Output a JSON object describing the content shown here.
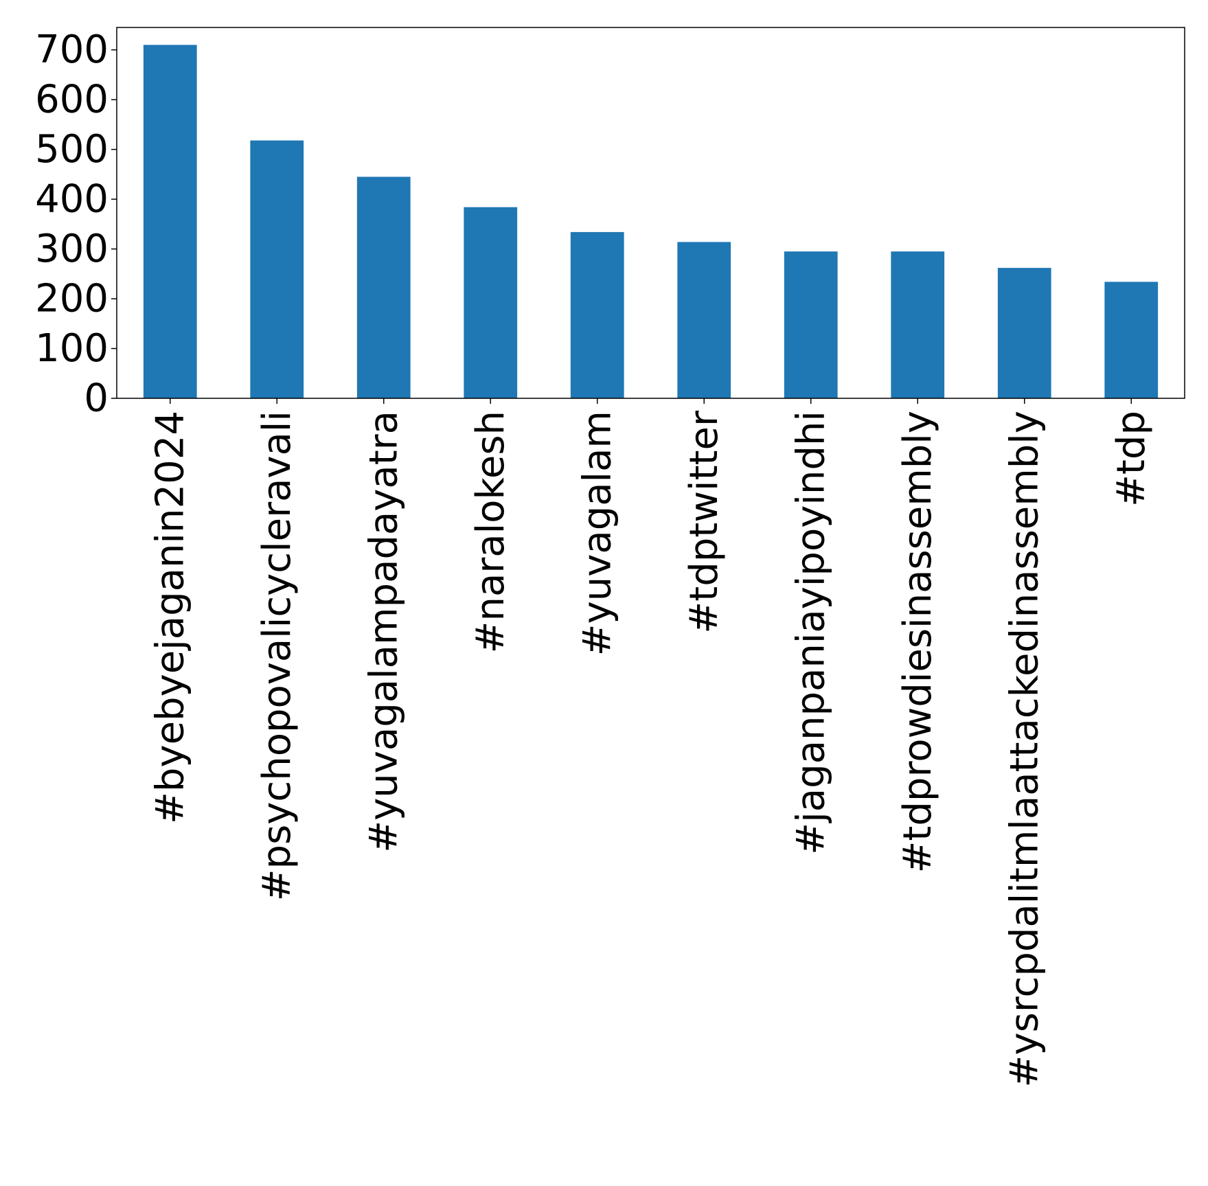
{
  "chart_data": {
    "type": "bar",
    "title": "",
    "xlabel": "",
    "ylabel": "",
    "categories": [
      "#byebyejaganin2024",
      "#psychopovalicycleravali",
      "#yuvagalampadayatra",
      "#naralokesh",
      "#yuvagalam",
      "#tdptwitter",
      "#jaganpaniayipoyindhi",
      "#tdprowdiesinassembly",
      "#ysrcpdalitmlaattackedinassembly",
      "#tdp"
    ],
    "values": [
      710,
      518,
      445,
      384,
      334,
      314,
      295,
      295,
      262,
      234
    ],
    "ylim": [
      0,
      745
    ],
    "yticks": [
      0,
      100,
      200,
      300,
      400,
      500,
      600,
      700
    ],
    "bar_color": "#1f77b4",
    "grid": false,
    "legend": "none"
  }
}
